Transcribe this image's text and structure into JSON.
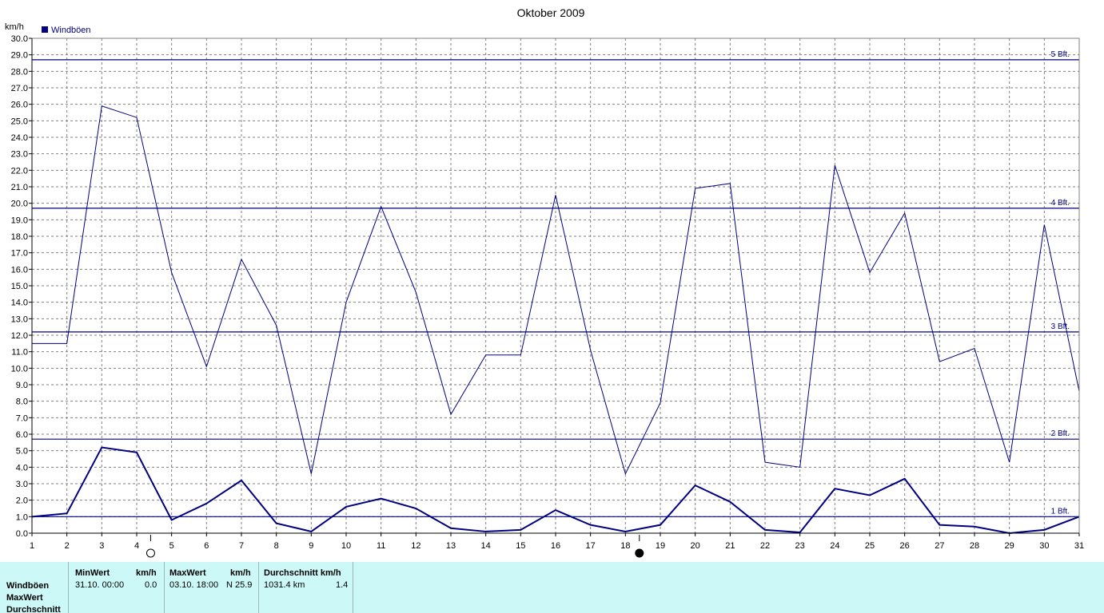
{
  "chart_data": {
    "type": "line",
    "title": "Oktober 2009",
    "ylabel": "km/h",
    "xlabel": "",
    "x": [
      1,
      2,
      3,
      4,
      5,
      6,
      7,
      8,
      9,
      10,
      11,
      12,
      13,
      14,
      15,
      16,
      17,
      18,
      19,
      20,
      21,
      22,
      23,
      24,
      25,
      26,
      27,
      28,
      29,
      30,
      31
    ],
    "xlim": [
      1,
      31
    ],
    "ylim": [
      0,
      30
    ],
    "ytick_step": 1,
    "grid": true,
    "legend": {
      "placement": "top-left",
      "entries": [
        {
          "label": "Windböen",
          "color": "#000080"
        }
      ]
    },
    "series": [
      {
        "name": "Windböen",
        "role": "max",
        "color": "#000080",
        "values": [
          11.5,
          11.5,
          25.9,
          25.2,
          15.8,
          10.1,
          16.6,
          12.6,
          3.6,
          14.0,
          19.8,
          14.6,
          7.2,
          10.8,
          10.8,
          20.5,
          11.1,
          3.6,
          7.9,
          20.9,
          21.2,
          4.3,
          4.0,
          22.3,
          15.8,
          19.4,
          10.4,
          11.2,
          4.3,
          18.7,
          8.6
        ]
      },
      {
        "name": "",
        "role": "average",
        "color": "#000080",
        "values": [
          1.0,
          1.2,
          5.2,
          4.9,
          0.8,
          1.8,
          3.2,
          0.6,
          0.1,
          1.6,
          2.1,
          1.5,
          0.3,
          0.1,
          0.2,
          1.4,
          0.5,
          0.1,
          0.5,
          2.9,
          1.9,
          0.2,
          0.05,
          2.7,
          2.3,
          3.3,
          0.5,
          0.4,
          0.0,
          0.2,
          1.0
        ]
      }
    ],
    "reference_lines": [
      {
        "label": "1 Bft.",
        "y": 1.0
      },
      {
        "label": "2 Bft.",
        "y": 5.7
      },
      {
        "label": "3 Bft.",
        "y": 12.2
      },
      {
        "label": "4 Bft.",
        "y": 19.7
      },
      {
        "label": "5 Bft.",
        "y": 28.7
      }
    ],
    "moon_phases": [
      {
        "day": 4.4,
        "phase": "full-moon"
      },
      {
        "day": 18.4,
        "phase": "new-moon"
      }
    ]
  },
  "stats": {
    "row_labels": [
      "Windböen",
      "MaxWert",
      "Durchschnitt"
    ],
    "min": {
      "header": "MinWert",
      "unit": "km/h",
      "when": "31.10.  00:00",
      "value": "0.0"
    },
    "max": {
      "header": "MaxWert",
      "unit": "km/h",
      "when": "03.10.  18:00",
      "value": "N 25.9"
    },
    "avg": {
      "header": "Durchschnitt km/h",
      "distance": "1031.4 km",
      "value": "1.4"
    }
  },
  "colors": {
    "line": "#000080",
    "grid": "#808080",
    "panel": "#ccf8f8"
  }
}
